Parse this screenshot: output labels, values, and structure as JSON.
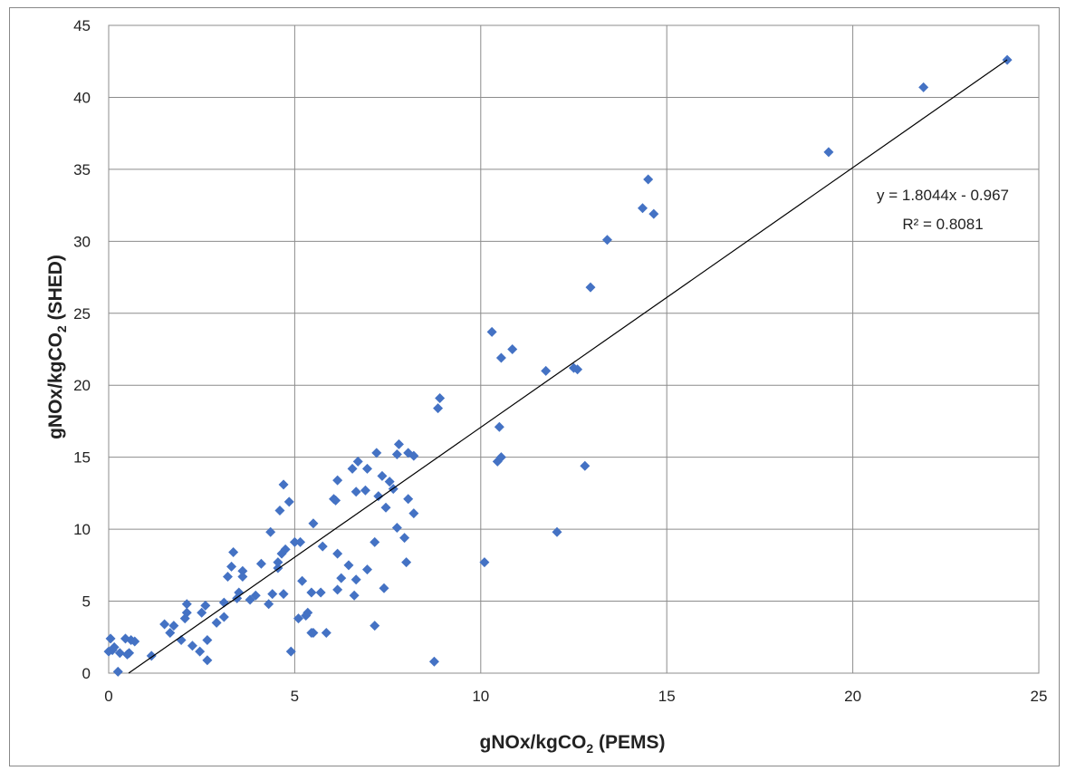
{
  "chart_data": {
    "type": "scatter",
    "title": "",
    "xlabel": {
      "main": "gNOx/kgCO",
      "sub": "2",
      "suffix": " (PEMS)"
    },
    "ylabel": {
      "main": "gNOx/kgCO",
      "sub": "2",
      "suffix": " (SHED)"
    },
    "xlim": [
      0,
      25
    ],
    "ylim": [
      0,
      45
    ],
    "xticks": [
      "0",
      "5",
      "10",
      "15",
      "20",
      "25"
    ],
    "yticks": [
      "0",
      "5",
      "10",
      "15",
      "20",
      "25",
      "30",
      "35",
      "40",
      "45"
    ],
    "grid": true,
    "marker": "diamond",
    "point_color": "#4472C4",
    "trendline": {
      "slope": 1.8044,
      "intercept": -0.967,
      "equation": "y = 1.8044x - 0.967",
      "r2": "R² = 0.8081",
      "color": "#000000"
    },
    "points": [
      [
        0.05,
        2.4
      ],
      [
        0.0,
        1.5
      ],
      [
        0.1,
        1.6
      ],
      [
        0.15,
        1.8
      ],
      [
        0.3,
        1.4
      ],
      [
        0.45,
        2.4
      ],
      [
        0.55,
        1.4
      ],
      [
        0.6,
        2.3
      ],
      [
        0.7,
        2.2
      ],
      [
        0.25,
        0.1
      ],
      [
        0.5,
        1.3
      ],
      [
        1.15,
        1.2
      ],
      [
        1.5,
        3.4
      ],
      [
        1.65,
        2.8
      ],
      [
        1.75,
        3.3
      ],
      [
        1.95,
        2.3
      ],
      [
        2.05,
        3.8
      ],
      [
        2.1,
        4.2
      ],
      [
        2.1,
        4.8
      ],
      [
        2.25,
        1.9
      ],
      [
        2.45,
        1.5
      ],
      [
        2.5,
        4.2
      ],
      [
        2.6,
        4.7
      ],
      [
        2.65,
        2.3
      ],
      [
        2.65,
        0.9
      ],
      [
        2.9,
        3.5
      ],
      [
        3.1,
        3.9
      ],
      [
        3.1,
        4.9
      ],
      [
        3.2,
        6.7
      ],
      [
        3.3,
        7.4
      ],
      [
        3.35,
        8.4
      ],
      [
        3.45,
        5.2
      ],
      [
        3.5,
        5.6
      ],
      [
        3.6,
        6.7
      ],
      [
        3.6,
        7.1
      ],
      [
        3.8,
        5.1
      ],
      [
        3.95,
        5.4
      ],
      [
        4.1,
        7.6
      ],
      [
        4.3,
        4.8
      ],
      [
        4.35,
        9.8
      ],
      [
        4.4,
        5.5
      ],
      [
        4.55,
        7.3
      ],
      [
        4.55,
        7.7
      ],
      [
        4.6,
        11.3
      ],
      [
        4.65,
        8.3
      ],
      [
        4.7,
        13.1
      ],
      [
        4.7,
        5.5
      ],
      [
        4.75,
        8.6
      ],
      [
        4.85,
        11.9
      ],
      [
        4.9,
        1.5
      ],
      [
        5.0,
        9.1
      ],
      [
        5.1,
        3.8
      ],
      [
        5.15,
        9.1
      ],
      [
        5.2,
        6.4
      ],
      [
        5.3,
        4.0
      ],
      [
        5.35,
        4.2
      ],
      [
        5.45,
        5.6
      ],
      [
        5.45,
        2.8
      ],
      [
        5.5,
        10.4
      ],
      [
        5.5,
        2.8
      ],
      [
        5.7,
        5.6
      ],
      [
        5.75,
        8.8
      ],
      [
        5.85,
        2.8
      ],
      [
        6.05,
        12.1
      ],
      [
        6.1,
        12.0
      ],
      [
        6.15,
        13.4
      ],
      [
        6.15,
        8.3
      ],
      [
        6.15,
        5.8
      ],
      [
        6.25,
        6.6
      ],
      [
        6.45,
        7.5
      ],
      [
        6.55,
        14.2
      ],
      [
        6.6,
        5.4
      ],
      [
        6.65,
        12.6
      ],
      [
        6.65,
        6.5
      ],
      [
        6.7,
        14.7
      ],
      [
        6.9,
        12.7
      ],
      [
        6.95,
        7.2
      ],
      [
        6.95,
        14.2
      ],
      [
        7.15,
        9.1
      ],
      [
        7.15,
        3.3
      ],
      [
        7.2,
        15.3
      ],
      [
        7.25,
        12.3
      ],
      [
        7.35,
        13.7
      ],
      [
        7.4,
        5.9
      ],
      [
        7.45,
        11.5
      ],
      [
        7.55,
        13.3
      ],
      [
        7.65,
        12.8
      ],
      [
        7.75,
        15.2
      ],
      [
        7.75,
        10.1
      ],
      [
        7.8,
        15.9
      ],
      [
        7.95,
        9.4
      ],
      [
        8.0,
        7.7
      ],
      [
        8.05,
        15.3
      ],
      [
        8.05,
        12.1
      ],
      [
        8.2,
        15.1
      ],
      [
        8.2,
        11.1
      ],
      [
        8.75,
        0.8
      ],
      [
        8.85,
        18.4
      ],
      [
        8.9,
        19.1
      ],
      [
        10.1,
        7.7
      ],
      [
        10.3,
        23.7
      ],
      [
        10.45,
        14.7
      ],
      [
        10.5,
        17.1
      ],
      [
        10.55,
        21.9
      ],
      [
        10.55,
        15.0
      ],
      [
        10.85,
        22.5
      ],
      [
        11.75,
        21.0
      ],
      [
        12.05,
        9.8
      ],
      [
        12.5,
        21.2
      ],
      [
        12.6,
        21.1
      ],
      [
        12.8,
        14.4
      ],
      [
        12.95,
        26.8
      ],
      [
        13.4,
        30.1
      ],
      [
        14.35,
        32.3
      ],
      [
        14.5,
        34.3
      ],
      [
        14.65,
        31.9
      ],
      [
        19.35,
        36.2
      ],
      [
        21.9,
        40.7
      ],
      [
        24.15,
        42.6
      ]
    ]
  }
}
